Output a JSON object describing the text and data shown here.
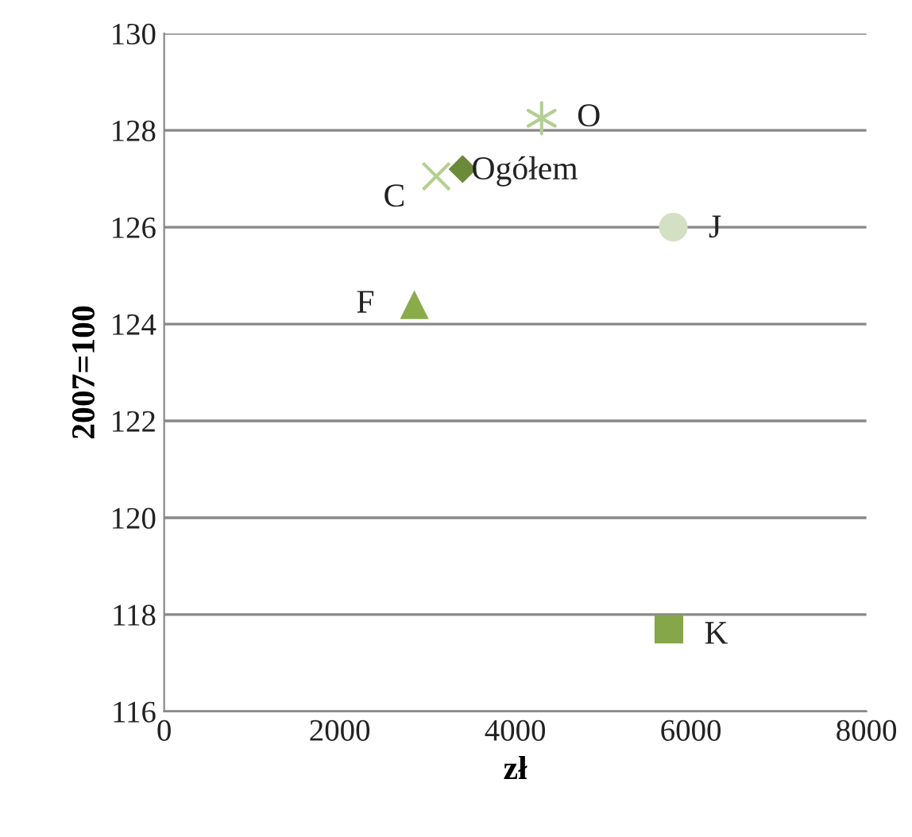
{
  "chart_data": {
    "type": "scatter",
    "xlabel": "zł",
    "ylabel": "2007=100",
    "xlim": [
      0,
      8000
    ],
    "xticks": [
      0,
      2000,
      4000,
      6000,
      8000
    ],
    "ylim": [
      116,
      130
    ],
    "yticks": [
      116,
      118,
      120,
      122,
      124,
      126,
      128,
      130
    ],
    "grid": "y",
    "series": [
      {
        "name": "O",
        "color": "#b3cf94",
        "marker": "cross",
        "x": [
          4300
        ],
        "values": [
          128.25
        ]
      },
      {
        "name": "Ogółem",
        "color": "#6b8a3a",
        "marker": "diamond",
        "x": [
          3400
        ],
        "values": [
          127.2
        ]
      },
      {
        "name": "C",
        "color": "#b3d08f",
        "marker": "cross",
        "x": [
          3100
        ],
        "values": [
          127.05
        ]
      },
      {
        "name": "J",
        "color": "#d3e0c3",
        "marker": "circle",
        "x": [
          5800
        ],
        "values": [
          126.0
        ]
      },
      {
        "name": "F",
        "color": "#8aab4a",
        "marker": "triangle",
        "x": [
          2850
        ],
        "values": [
          124.4
        ]
      },
      {
        "name": "K",
        "color": "#86a64a",
        "marker": "square",
        "x": [
          5750
        ],
        "values": [
          117.7
        ]
      }
    ]
  }
}
